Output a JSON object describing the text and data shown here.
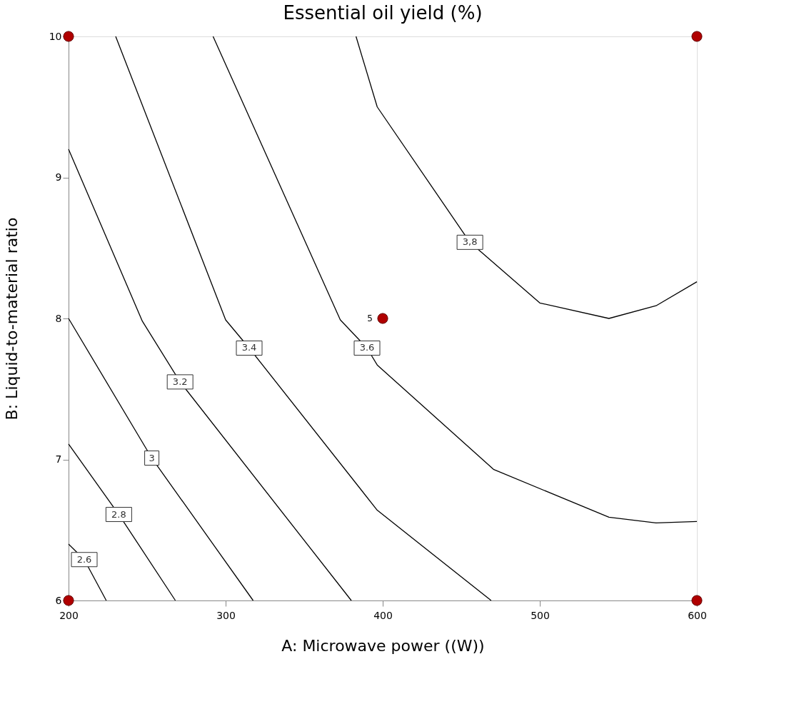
{
  "chart_data": {
    "type": "line",
    "title": "Essential oil yield (%)",
    "xlabel": "A: Microwave power ((W))",
    "ylabel": "B: Liquid-to-material ratio",
    "xlim": [
      200,
      600
    ],
    "xticks": [
      200,
      300,
      400,
      500,
      600
    ],
    "ylim": [
      6,
      10
    ],
    "yticks": [
      6,
      7,
      8,
      9,
      10
    ],
    "grid": false,
    "marker": "none",
    "line_style": "solid",
    "series": [
      {
        "color": "#000000",
        "x": [
          200,
          210,
          224
        ],
        "values": [
          6.4,
          6.29,
          6
        ]
      },
      {
        "color": "#000000",
        "x": [
          200,
          232,
          268
        ],
        "values": [
          7.11,
          6.61,
          6
        ]
      },
      {
        "color": "#000000",
        "x": [
          200,
          253,
          317.5
        ],
        "values": [
          8.0,
          7.01,
          6
        ]
      },
      {
        "color": "#000000",
        "x": [
          200,
          247,
          271,
          380
        ],
        "values": [
          9.2,
          7.98,
          7.55,
          6
        ]
      },
      {
        "color": "#000000",
        "x": [
          230,
          300,
          315,
          396.5,
          469
        ],
        "values": [
          10,
          7.99,
          7.79,
          6.64,
          6
        ]
      },
      {
        "color": "#000000",
        "x": [
          292,
          373,
          390,
          396.5,
          470.5,
          544,
          574,
          600
        ],
        "values": [
          10,
          7.99,
          7.79,
          7.67,
          6.93,
          6.59,
          6.55,
          6.56
        ]
      },
      {
        "color": "#000000",
        "x": [
          383,
          396.5,
          455.5,
          500,
          544,
          574,
          600
        ],
        "values": [
          10,
          9.5,
          8.54,
          8.11,
          8.0,
          8.09,
          8.26
        ]
      },
      {
        "type": "scatter",
        "color": "#b00000",
        "marker": "circle",
        "x": [
          200,
          200,
          600,
          600,
          400
        ],
        "values": [
          6,
          10,
          6,
          10,
          8
        ]
      }
    ],
    "annotations": [
      {
        "text": "2.6",
        "x": 210,
        "y": 6.29
      },
      {
        "text": "2.8",
        "x": 232,
        "y": 6.61
      },
      {
        "text": "3",
        "x": 253,
        "y": 7.01
      },
      {
        "text": "3.2",
        "x": 271,
        "y": 7.55
      },
      {
        "text": "3.4",
        "x": 315,
        "y": 7.79
      },
      {
        "text": "3.6",
        "x": 390,
        "y": 7.79
      },
      {
        "text": "3,8",
        "x": 455.5,
        "y": 8.54
      },
      {
        "text": "5",
        "x": 400,
        "y": 8
      }
    ]
  }
}
